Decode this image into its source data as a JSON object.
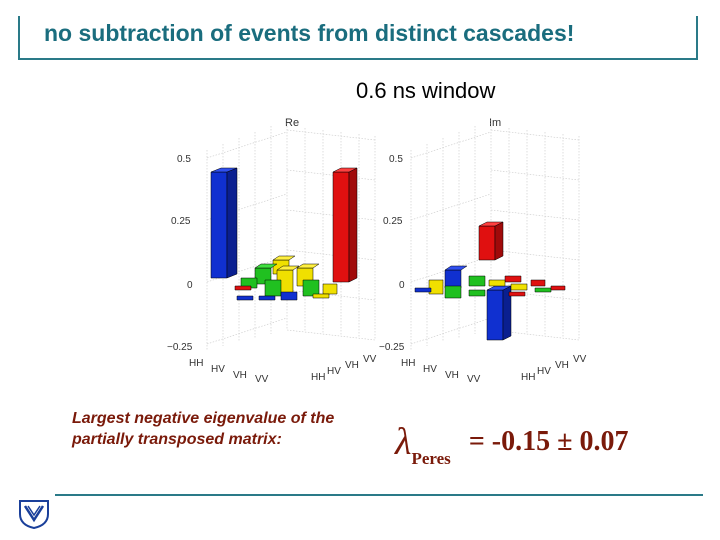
{
  "slide": {
    "title": "no subtraction of  events from distinct cascades!",
    "subtitle": "0.6 ns window",
    "caption": "Largest negative eigenvalue of the partially transposed matrix:",
    "formula": {
      "symbol": "λ",
      "subscript": "Peres",
      "value": "= -0.15 ± 0.07"
    }
  },
  "plots": {
    "re_label": "Re",
    "im_label": "Im",
    "yticks": [
      "0.5",
      "0.25",
      "0",
      "−0.25"
    ],
    "basis": [
      "HH",
      "HV",
      "VH",
      "VV"
    ]
  },
  "colors": {
    "accent": "#1a6d7e",
    "caption": "#7a1a0a",
    "blue": "#1030d0",
    "red": "#e01010",
    "green": "#20c020",
    "yellow": "#f0e000"
  }
}
